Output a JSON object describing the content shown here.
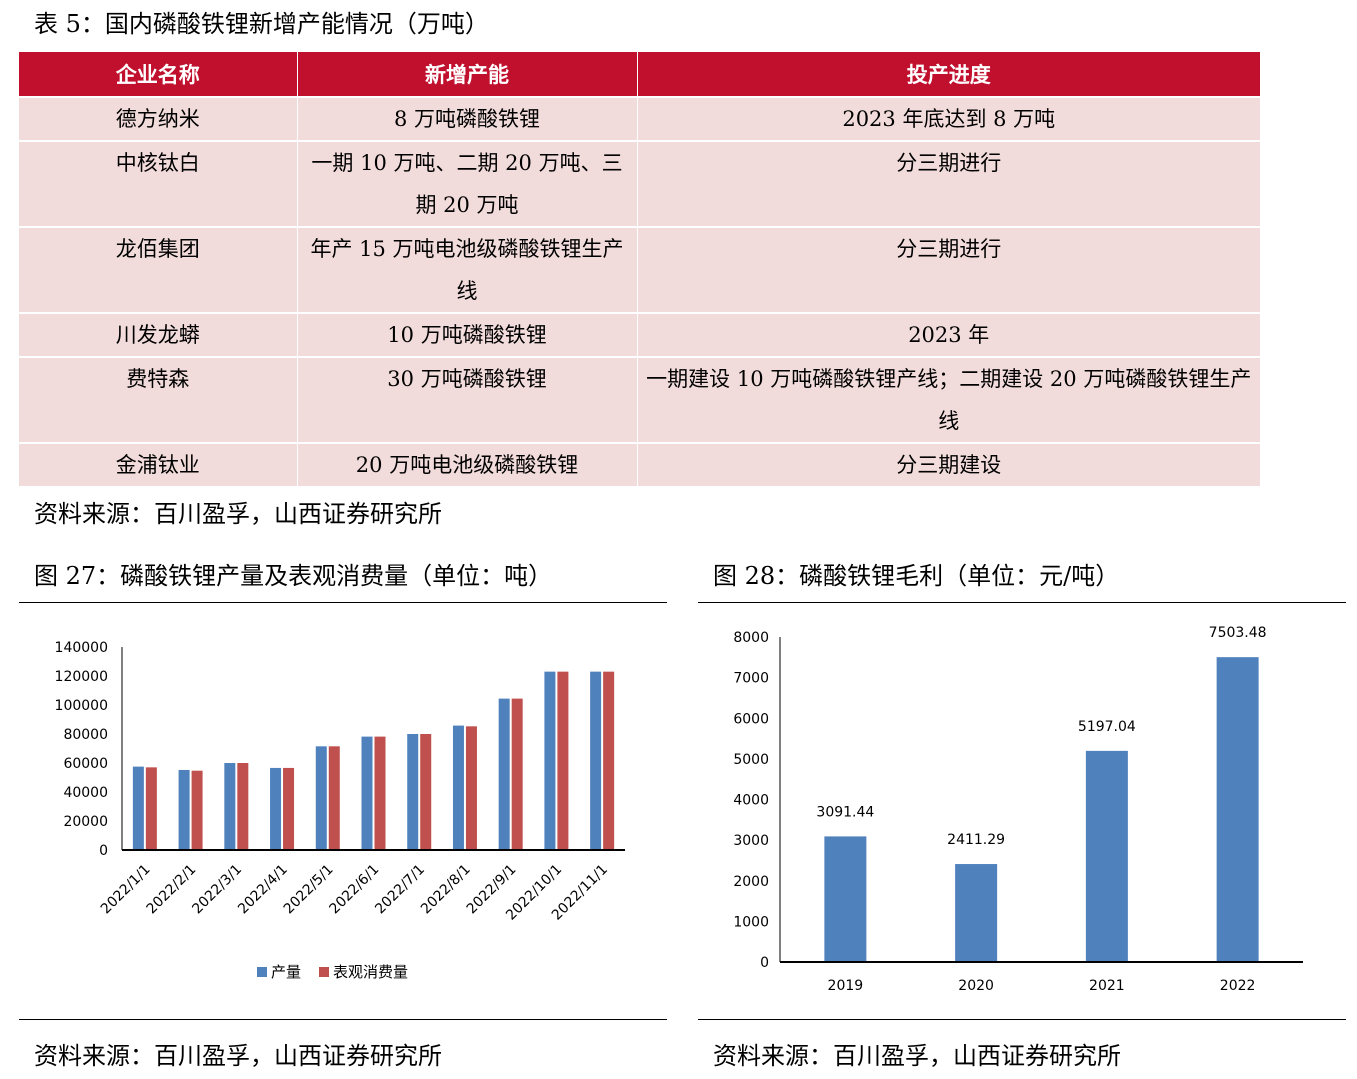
{
  "table_title": "表 5：国内磷酸铁锂新增产能情况（万吨）",
  "table": {
    "headers": [
      "企业名称",
      "新增产能",
      "投产进度"
    ],
    "rows": [
      [
        "德方纳米",
        "8 万吨磷酸铁锂",
        "2023 年底达到 8 万吨"
      ],
      [
        "中核钛白",
        "一期 10 万吨、二期 20 万吨、三期 20 万吨",
        "分三期进行"
      ],
      [
        "龙佰集团",
        "年产 15 万吨电池级磷酸铁锂生产线",
        "分三期进行"
      ],
      [
        "川发龙蟒",
        "10 万吨磷酸铁锂",
        "2023 年"
      ],
      [
        "费特森",
        "30 万吨磷酸铁锂",
        "一期建设 10 万吨磷酸铁锂产线；二期建设 20 万吨磷酸铁锂生产线"
      ],
      [
        "金浦钛业",
        "20 万吨电池级磷酸铁锂",
        "分三期建设"
      ]
    ]
  },
  "source1": "资料来源：百川盈孚，山西证券研究所",
  "fig27_title": "图 27：磷酸铁锂产量及表观消费量（单位：吨）",
  "fig28_title": "图 28：磷酸铁锂毛利（单位：元/吨）",
  "source2": "资料来源：百川盈孚，山西证券研究所",
  "source3": "资料来源：百川盈孚，山西证券研究所",
  "colors": {
    "blue": "#4f81bd",
    "red": "#c0504d",
    "header": "#c0102e"
  },
  "chart_data": [
    {
      "type": "bar",
      "title": "磷酸铁锂产量及表观消费量（单位：吨）",
      "categories": [
        "2022/1/1",
        "2022/2/1",
        "2022/3/1",
        "2022/4/1",
        "2022/5/1",
        "2022/6/1",
        "2022/7/1",
        "2022/8/1",
        "2022/9/1",
        "2022/10/1",
        "2022/11/1"
      ],
      "series": [
        {
          "name": "产量",
          "values": [
            57500,
            55200,
            60000,
            56600,
            71500,
            78200,
            80000,
            85800,
            104400,
            123000,
            123000
          ]
        },
        {
          "name": "表观消费量",
          "values": [
            57000,
            54700,
            60000,
            56600,
            71500,
            78200,
            80000,
            85300,
            104400,
            123000,
            123000
          ]
        }
      ],
      "ylim": [
        0,
        140000
      ],
      "yticks": [
        "0",
        "20000",
        "40000",
        "60000",
        "80000",
        "100000",
        "120000",
        "140000"
      ],
      "legend": "bottom"
    },
    {
      "type": "bar",
      "title": "磷酸铁锂毛利（单位：元/吨）",
      "categories": [
        "2019",
        "2020",
        "2021",
        "2022"
      ],
      "values": [
        3091.44,
        2411.29,
        5197.04,
        7503.48
      ],
      "labels": [
        "3091.44",
        "2411.29",
        "5197.04",
        "7503.48"
      ],
      "ylim": [
        0,
        8000
      ],
      "yticks": [
        "0",
        "1000",
        "2000",
        "3000",
        "4000",
        "5000",
        "6000",
        "7000",
        "8000"
      ]
    }
  ]
}
